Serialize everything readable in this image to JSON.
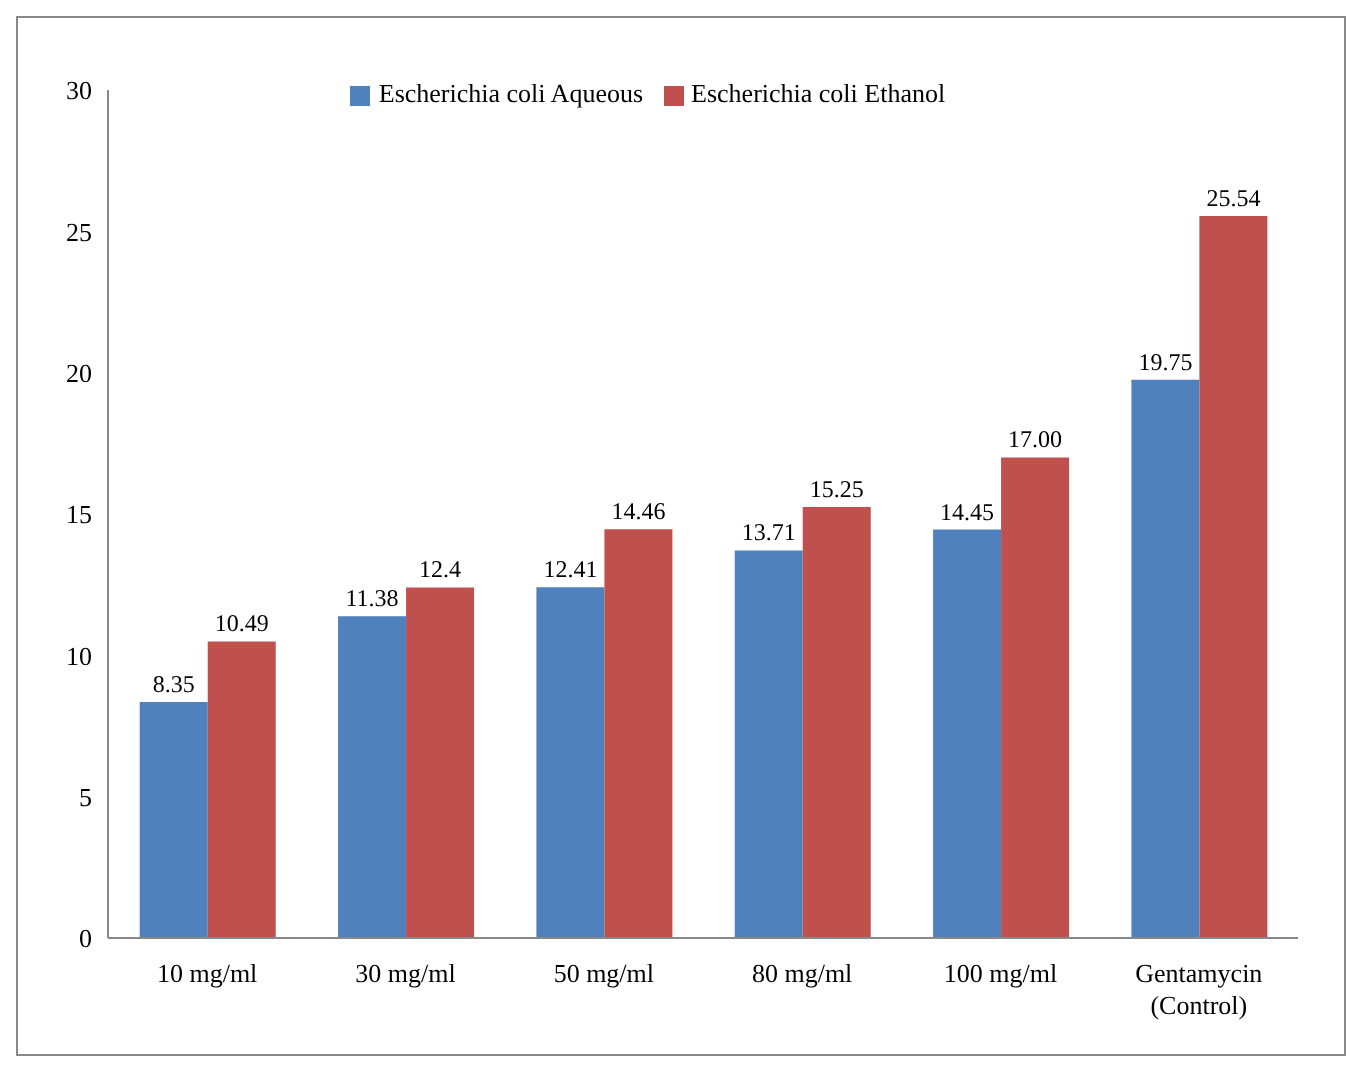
{
  "chart_data": {
    "type": "bar",
    "categories": [
      "10 mg/ml",
      "30 mg/ml",
      "50 mg/ml",
      "80 mg/ml",
      "100 mg/ml",
      "Gentamycin (Control)"
    ],
    "series": [
      {
        "name": "Escherichia coli Aqueous",
        "color": "#4f81bd",
        "values": [
          8.35,
          11.38,
          12.41,
          13.71,
          14.45,
          19.75
        ],
        "value_labels": [
          "8.35",
          "11.38",
          "12.41",
          "13.71",
          "14.45",
          "19.75"
        ]
      },
      {
        "name": "Escherichia coli Ethanol",
        "color": "#c0504d",
        "values": [
          10.49,
          12.4,
          14.46,
          15.25,
          17,
          25.54
        ],
        "value_labels": [
          "10.49",
          "12.4",
          "14.46",
          "15.25",
          "17.00",
          "25.54"
        ]
      }
    ],
    "ylim": [
      0,
      30
    ],
    "yticks": [
      0,
      5,
      10,
      15,
      20,
      25,
      30
    ],
    "grid": false,
    "legend": "top"
  }
}
